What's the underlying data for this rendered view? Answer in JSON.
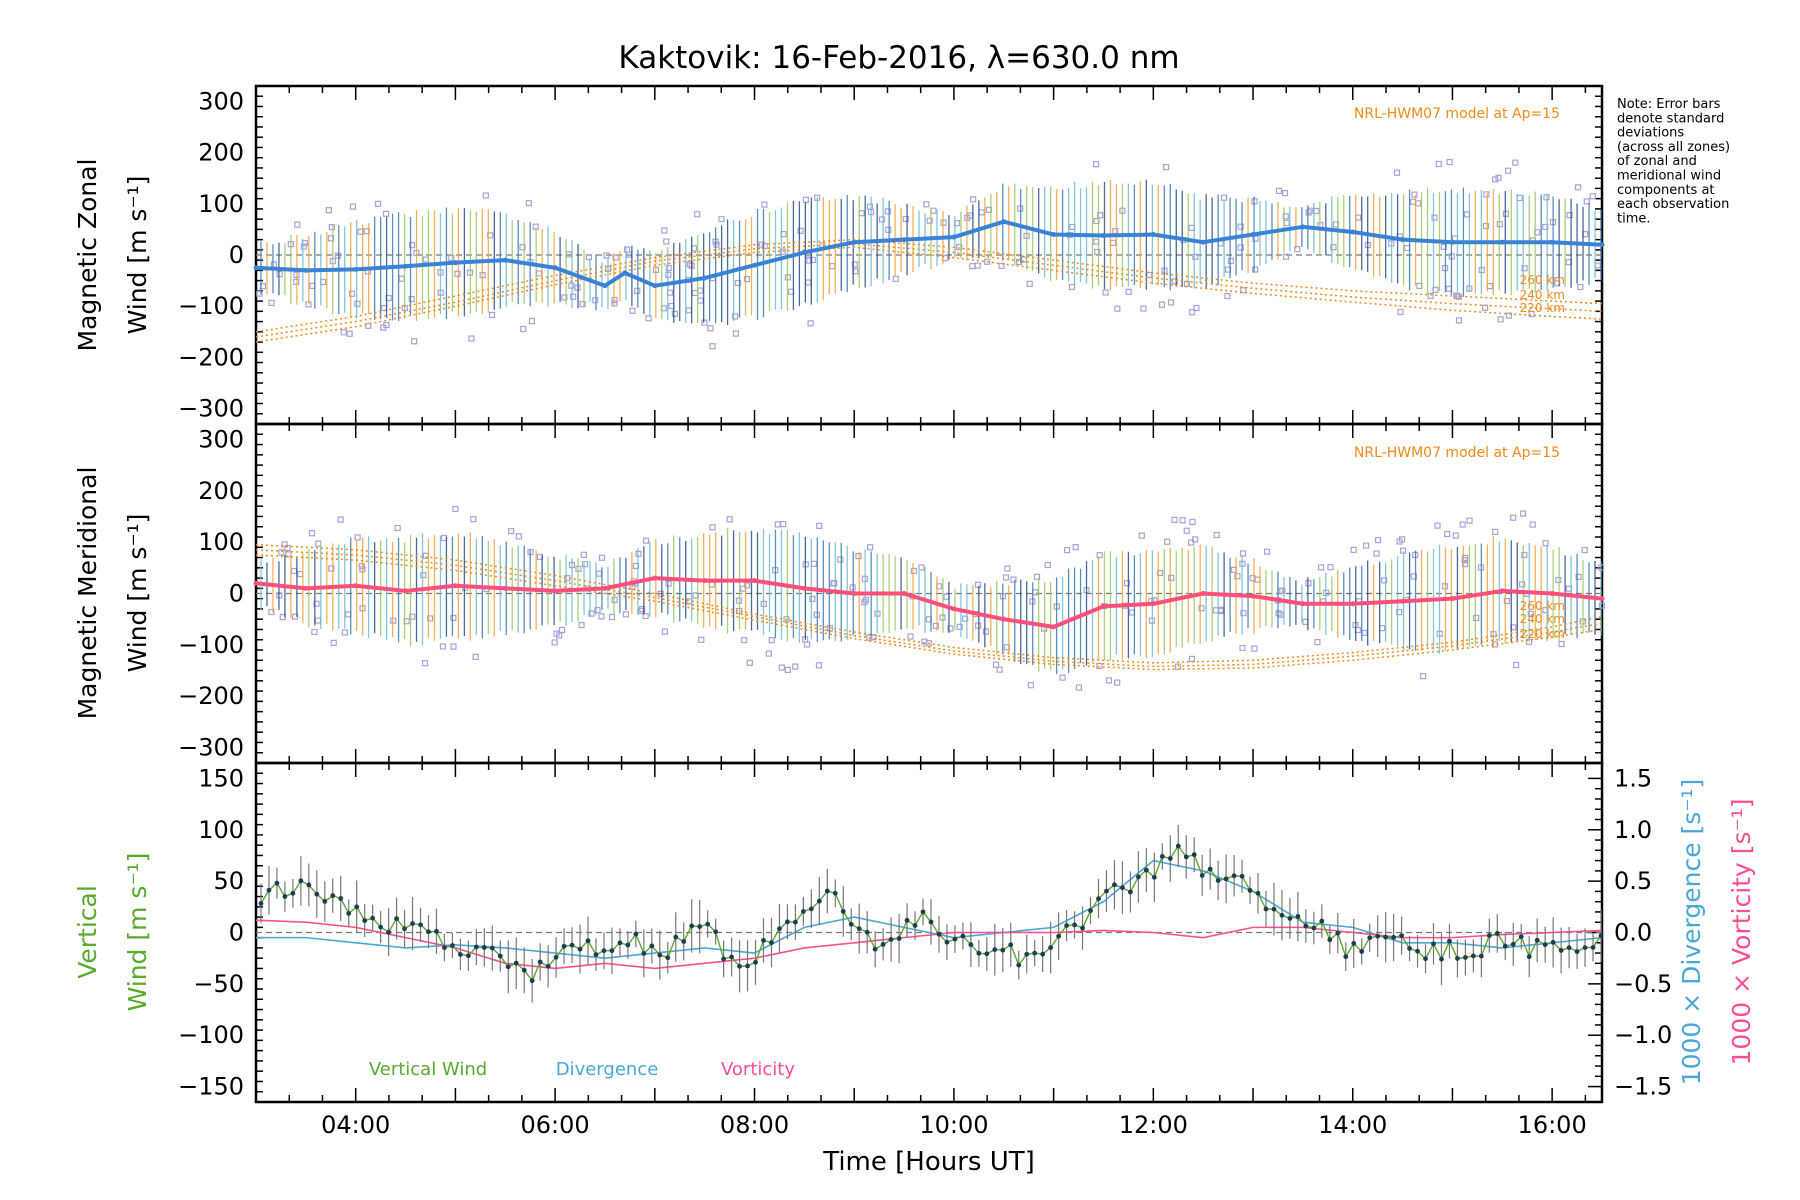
{
  "title": "Kaktovik: 16-Feb-2016, λ=630.0 nm",
  "note": [
    "Note: Error bars",
    "denote standard",
    "deviations",
    "(across all zones)",
    "of zonal and",
    "meridional wind",
    "components at",
    "each observation",
    "time."
  ],
  "xlabel": "Time [Hours UT]",
  "colors": {
    "zonal": "#3a82d6",
    "meridional": "#ff4f7b",
    "model": "#f08a1c",
    "vertical": "#5aaa2e",
    "divergence": "#4aa8d8",
    "vorticity": "#ff4f8e",
    "scatter": "#a8a2d8"
  },
  "chart_data": [
    {
      "type": "scatter",
      "panel": "zonal",
      "ylabel_lines": [
        "Magnetic Zonal",
        "Wind [m s⁻¹]"
      ],
      "x_unit": "hours UT",
      "xlim": [
        3.0,
        16.5
      ],
      "ylim": [
        -330,
        330
      ],
      "yticks": [
        -300,
        -200,
        -100,
        0,
        100,
        200,
        300
      ],
      "xtick_labels": [
        "04:00",
        "06:00",
        "08:00",
        "10:00",
        "12:00",
        "14:00",
        "16:00"
      ],
      "grid": false,
      "model_label": "NRL-HWM07 model at Ap=15",
      "model_altitudes": [
        "260 km",
        "240 km",
        "220 km"
      ],
      "series": [
        {
          "name": "Magnetic Zonal Wind",
          "x": [
            3.0,
            3.5,
            4.0,
            4.5,
            5.0,
            5.5,
            6.0,
            6.5,
            6.7,
            7.0,
            7.5,
            8.0,
            8.5,
            9.0,
            9.5,
            10.0,
            10.5,
            11.0,
            11.5,
            12.0,
            12.5,
            13.0,
            13.5,
            14.0,
            14.5,
            15.0,
            15.5,
            16.0,
            16.5
          ],
          "y": [
            -25,
            -30,
            -28,
            -22,
            -15,
            -10,
            -25,
            -60,
            -35,
            -60,
            -45,
            -20,
            5,
            25,
            30,
            35,
            65,
            40,
            38,
            40,
            25,
            40,
            55,
            45,
            30,
            25,
            25,
            25,
            20
          ]
        },
        {
          "name": "260 km",
          "x": [
            3.0,
            4.0,
            5.0,
            6.0,
            7.0,
            8.0,
            9.0,
            10.0,
            11.0,
            12.0,
            13.0,
            14.0,
            15.0,
            16.0,
            16.5
          ],
          "y": [
            -150,
            -120,
            -80,
            -40,
            -5,
            20,
            30,
            15,
            -10,
            -35,
            -55,
            -70,
            -80,
            -90,
            -95
          ]
        },
        {
          "name": "240 km",
          "x": [
            3.0,
            4.0,
            5.0,
            6.0,
            7.0,
            8.0,
            9.0,
            10.0,
            11.0,
            12.0,
            13.0,
            14.0,
            15.0,
            16.0,
            16.5
          ],
          "y": [
            -160,
            -130,
            -92,
            -50,
            -12,
            12,
            22,
            5,
            -20,
            -45,
            -65,
            -82,
            -95,
            -105,
            -110
          ]
        },
        {
          "name": "220 km",
          "x": [
            3.0,
            4.0,
            5.0,
            6.0,
            7.0,
            8.0,
            9.0,
            10.0,
            11.0,
            12.0,
            13.0,
            14.0,
            15.0,
            16.0,
            16.5
          ],
          "y": [
            -170,
            -140,
            -100,
            -58,
            -20,
            5,
            15,
            -5,
            -30,
            -55,
            -75,
            -92,
            -108,
            -120,
            -125
          ]
        }
      ]
    },
    {
      "type": "scatter",
      "panel": "meridional",
      "ylabel_lines": [
        "Magnetic Meridional",
        "Wind [m s⁻¹]"
      ],
      "x_unit": "hours UT",
      "xlim": [
        3.0,
        16.5
      ],
      "ylim": [
        -330,
        330
      ],
      "yticks": [
        -300,
        -200,
        -100,
        0,
        100,
        200,
        300
      ],
      "grid": false,
      "model_label": "NRL-HWM07 model at Ap=15",
      "model_altitudes": [
        "260 km",
        "240 km",
        "220 km"
      ],
      "series": [
        {
          "name": "Magnetic Meridional Wind",
          "x": [
            3.0,
            3.5,
            4.0,
            4.5,
            5.0,
            5.5,
            6.0,
            6.5,
            7.0,
            7.5,
            8.0,
            8.5,
            9.0,
            9.5,
            10.0,
            10.5,
            11.0,
            11.5,
            12.0,
            12.5,
            13.0,
            13.5,
            14.0,
            14.5,
            15.0,
            15.5,
            16.0,
            16.5
          ],
          "y": [
            20,
            10,
            15,
            5,
            15,
            10,
            5,
            10,
            30,
            25,
            25,
            10,
            0,
            0,
            -30,
            -50,
            -65,
            -25,
            -20,
            0,
            -5,
            -20,
            -20,
            -15,
            -10,
            5,
            0,
            -10
          ]
        },
        {
          "name": "260 km",
          "x": [
            3.0,
            4.0,
            5.0,
            6.0,
            7.0,
            8.0,
            9.0,
            10.0,
            11.0,
            12.0,
            13.0,
            14.0,
            15.0,
            16.0,
            16.5
          ],
          "y": [
            95,
            85,
            65,
            35,
            0,
            -40,
            -75,
            -105,
            -125,
            -135,
            -130,
            -115,
            -95,
            -65,
            -45
          ]
        },
        {
          "name": "240 km",
          "x": [
            3.0,
            4.0,
            5.0,
            6.0,
            7.0,
            8.0,
            9.0,
            10.0,
            11.0,
            12.0,
            13.0,
            14.0,
            15.0,
            16.0,
            16.5
          ],
          "y": [
            85,
            75,
            55,
            25,
            -8,
            -45,
            -82,
            -112,
            -132,
            -142,
            -138,
            -122,
            -102,
            -75,
            -58
          ]
        },
        {
          "name": "220 km",
          "x": [
            3.0,
            4.0,
            5.0,
            6.0,
            7.0,
            8.0,
            9.0,
            10.0,
            11.0,
            12.0,
            13.0,
            14.0,
            15.0,
            16.0,
            16.5
          ],
          "y": [
            75,
            65,
            45,
            15,
            -15,
            -52,
            -88,
            -118,
            -138,
            -148,
            -145,
            -130,
            -110,
            -85,
            -70
          ]
        }
      ]
    },
    {
      "type": "line",
      "panel": "vertical",
      "ylabel_lines": [
        "Vertical",
        "Wind [m s⁻¹]"
      ],
      "right_labels": [
        "1000 × Divergence [s⁻¹]",
        "1000 × Vorticity [s⁻¹]"
      ],
      "x_unit": "hours UT",
      "xlim": [
        3.0,
        16.5
      ],
      "ylim": [
        -165,
        165
      ],
      "yticks": [
        -150,
        -100,
        -50,
        0,
        50,
        100,
        150
      ],
      "y2lim": [
        -1.65,
        1.65
      ],
      "y2ticks": [
        -1.5,
        -1.0,
        -0.5,
        0.0,
        0.5,
        1.0,
        1.5
      ],
      "grid": false,
      "legend": [
        "Vertical Wind",
        "Divergence",
        "Vorticity"
      ],
      "legend_position": "bottom-left",
      "series": [
        {
          "name": "Vertical Wind",
          "x": [
            3.0,
            3.25,
            3.5,
            3.75,
            4.0,
            4.25,
            4.5,
            4.75,
            5.0,
            5.25,
            5.5,
            5.75,
            6.0,
            6.25,
            6.5,
            6.75,
            7.0,
            7.25,
            7.5,
            7.75,
            8.0,
            8.25,
            8.5,
            8.75,
            9.0,
            9.25,
            9.5,
            9.75,
            10.0,
            10.25,
            10.5,
            10.75,
            11.0,
            11.25,
            11.5,
            11.75,
            12.0,
            12.25,
            12.5,
            12.75,
            13.0,
            13.25,
            13.5,
            13.75,
            14.0,
            14.25,
            14.5,
            14.75,
            15.0,
            15.25,
            15.5,
            15.75,
            16.0,
            16.25,
            16.5
          ],
          "y": [
            25,
            45,
            40,
            35,
            20,
            10,
            5,
            0,
            -10,
            -20,
            -25,
            -40,
            -20,
            -10,
            -15,
            -5,
            -20,
            -10,
            20,
            -30,
            -20,
            -5,
            20,
            40,
            10,
            -10,
            5,
            15,
            -10,
            -15,
            -20,
            -25,
            -10,
            5,
            35,
            45,
            60,
            80,
            60,
            50,
            45,
            20,
            10,
            0,
            -20,
            -10,
            -5,
            -20,
            -15,
            -20,
            -5,
            -15,
            -15,
            -10,
            -10
          ]
        },
        {
          "name": "Divergence",
          "x": [
            3.0,
            3.5,
            4.0,
            4.5,
            5.0,
            5.5,
            6.0,
            6.5,
            7.0,
            7.5,
            8.0,
            8.5,
            9.0,
            9.5,
            10.0,
            10.5,
            11.0,
            11.5,
            12.0,
            12.5,
            13.0,
            13.5,
            14.0,
            14.5,
            15.0,
            15.5,
            16.0,
            16.5
          ],
          "y": [
            -0.05,
            -0.05,
            -0.1,
            -0.15,
            -0.12,
            -0.15,
            -0.2,
            -0.25,
            -0.2,
            -0.15,
            -0.2,
            0.05,
            0.15,
            0.05,
            -0.05,
            0.0,
            0.05,
            0.3,
            0.7,
            0.6,
            0.4,
            0.1,
            0.05,
            -0.1,
            -0.1,
            -0.15,
            -0.1,
            -0.05
          ]
        },
        {
          "name": "Vorticity",
          "x": [
            3.0,
            3.5,
            4.0,
            4.5,
            5.0,
            5.5,
            6.0,
            6.5,
            7.0,
            7.5,
            8.0,
            8.5,
            9.0,
            9.5,
            10.0,
            10.5,
            11.0,
            11.5,
            12.0,
            12.5,
            13.0,
            13.5,
            14.0,
            14.5,
            15.0,
            15.5,
            16.0,
            16.5
          ],
          "y": [
            0.12,
            0.1,
            0.05,
            -0.05,
            -0.15,
            -0.3,
            -0.35,
            -0.3,
            -0.35,
            -0.3,
            -0.25,
            -0.15,
            -0.1,
            -0.05,
            0.0,
            0.0,
            0.0,
            0.02,
            0.0,
            -0.05,
            0.05,
            0.05,
            0.0,
            -0.05,
            -0.05,
            -0.02,
            0.0,
            0.02
          ]
        }
      ]
    }
  ]
}
